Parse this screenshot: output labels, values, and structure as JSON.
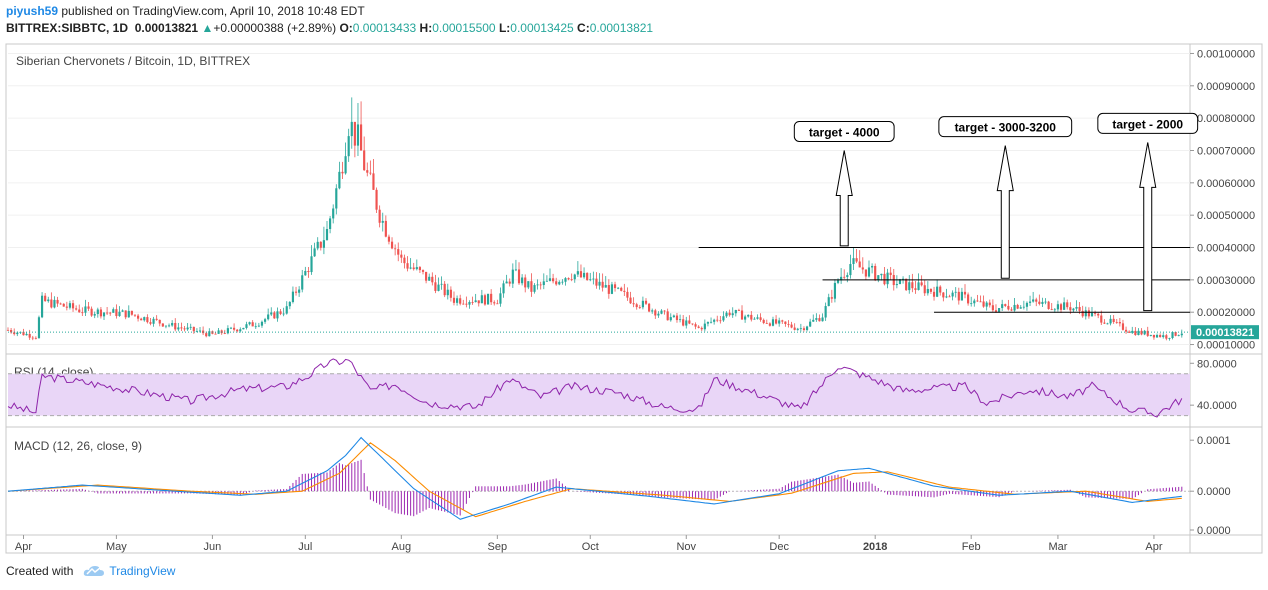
{
  "header": {
    "user": "piyush59",
    "published": "published on TradingView.com, April 10, 2018 10:48 EDT",
    "symbol": "BITTREX:SIBBTC, 1D",
    "last": "0.00013821",
    "change_arrow": "▲",
    "change": "+0.00000388 (+2.89%)",
    "o_label": "O:",
    "o": "0.00013433",
    "h_label": "H:",
    "h": "0.00015500",
    "l_label": "L:",
    "l": "0.00013425",
    "c_label": "C:",
    "c": "0.00013821"
  },
  "footer": {
    "created_with": "Created with",
    "brand": "TradingView"
  },
  "colors": {
    "up": "#26a69a",
    "down": "#ef5350",
    "accent": "#1e88e5",
    "rsi": "#8e24aa",
    "macd": "#1e88e5",
    "signal": "#fb8c00",
    "hist": "#9c27b0"
  },
  "chart_data": [
    {
      "type": "candlestick",
      "title": "Siberian Chervonets / Bitcoin, 1D, BITTREX",
      "ylim": [
        8e-05,
        0.00102
      ],
      "yticks": [
        "0.00010000",
        "0.00020000",
        "0.00030000",
        "0.00040000",
        "0.00050000",
        "0.00060000",
        "0.00070000",
        "0.00080000",
        "0.00090000",
        "0.00100000"
      ],
      "last_price_label": "0.00013821",
      "last_price": 0.00013821,
      "xticks": [
        "Apr",
        "May",
        "Jun",
        "Jul",
        "Aug",
        "Sep",
        "Oct",
        "Nov",
        "Dec",
        "2018",
        "Feb",
        "Mar",
        "Apr"
      ],
      "close_path": [
        [
          "2017-03-27",
          0.000145
        ],
        [
          "2017-04-05",
          0.000125
        ],
        [
          "2017-04-07",
          0.000235
        ],
        [
          "2017-04-20",
          0.000205
        ],
        [
          "2017-05-05",
          0.000195
        ],
        [
          "2017-05-20",
          0.000155
        ],
        [
          "2017-06-01",
          0.00013
        ],
        [
          "2017-06-15",
          0.000165
        ],
        [
          "2017-06-25",
          0.00021
        ],
        [
          "2017-07-03",
          0.00036
        ],
        [
          "2017-07-08",
          0.00045
        ],
        [
          "2017-07-12",
          0.00062
        ],
        [
          "2017-07-15",
          0.00079
        ],
        [
          "2017-07-18",
          0.00073
        ],
        [
          "2017-07-21",
          0.00062
        ],
        [
          "2017-07-26",
          0.00048
        ],
        [
          "2017-08-01",
          0.00036
        ],
        [
          "2017-08-10",
          0.0003
        ],
        [
          "2017-08-18",
          0.00024
        ],
        [
          "2017-09-01",
          0.00024
        ],
        [
          "2017-09-06",
          0.00032
        ],
        [
          "2017-09-12",
          0.00027
        ],
        [
          "2017-09-25",
          0.00032
        ],
        [
          "2017-10-10",
          0.00026
        ],
        [
          "2017-10-25",
          0.00019
        ],
        [
          "2017-11-05",
          0.00015
        ],
        [
          "2017-11-15",
          0.0002
        ],
        [
          "2017-11-25",
          0.000175
        ],
        [
          "2017-12-08",
          0.00015
        ],
        [
          "2017-12-15",
          0.00019
        ],
        [
          "2017-12-20",
          0.0003
        ],
        [
          "2017-12-24",
          0.00035
        ],
        [
          "2018-01-08",
          0.00029
        ],
        [
          "2018-01-28",
          0.00025
        ],
        [
          "2018-02-08",
          0.00021
        ],
        [
          "2018-02-20",
          0.00023
        ],
        [
          "2018-03-05",
          0.000215
        ],
        [
          "2018-03-15",
          0.00018
        ],
        [
          "2018-03-25",
          0.00014
        ],
        [
          "2018-04-05",
          0.000125
        ],
        [
          "2018-04-10",
          0.000138
        ]
      ],
      "horizontal_lines": [
        {
          "y": 0.0004,
          "from": "2017-11-05"
        },
        {
          "y": 0.0003,
          "from": "2017-12-15"
        },
        {
          "y": 0.0002,
          "from": "2018-01-20"
        }
      ],
      "annotations": [
        {
          "text": "target - 4000",
          "x": "2017-12-22",
          "arrow_bottom": 0.000405,
          "arrow_top": 0.0007
        },
        {
          "text": "target - 3000-3200",
          "x": "2018-02-12",
          "arrow_bottom": 0.000305,
          "arrow_top": 0.000715
        },
        {
          "text": "target - 2000",
          "x": "2018-03-30",
          "arrow_bottom": 0.000205,
          "arrow_top": 0.000725
        }
      ]
    },
    {
      "type": "line",
      "title": "RSI (14, close)",
      "ylim": [
        22,
        86
      ],
      "yticks": [
        "80.0000",
        "40.0000"
      ],
      "band": [
        30,
        70
      ],
      "series": [
        {
          "values": [
            [
              "2017-03-27",
              40
            ],
            [
              "2017-04-05",
              33
            ],
            [
              "2017-04-07",
              68
            ],
            [
              "2017-05-01",
              57
            ],
            [
              "2017-05-25",
              44
            ],
            [
              "2017-06-10",
              55
            ],
            [
              "2017-06-25",
              58
            ],
            [
              "2017-07-02",
              68
            ],
            [
              "2017-07-08",
              80
            ],
            [
              "2017-07-15",
              83
            ],
            [
              "2017-07-22",
              54
            ],
            [
              "2017-07-30",
              60
            ],
            [
              "2017-08-10",
              42
            ],
            [
              "2017-08-25",
              38
            ],
            [
              "2017-09-05",
              65
            ],
            [
              "2017-09-15",
              48
            ],
            [
              "2017-09-25",
              58
            ],
            [
              "2017-10-10",
              52
            ],
            [
              "2017-10-25",
              38
            ],
            [
              "2017-11-05",
              36
            ],
            [
              "2017-11-10",
              65
            ],
            [
              "2017-11-25",
              50
            ],
            [
              "2017-12-08",
              36
            ],
            [
              "2017-12-20",
              78
            ],
            [
              "2017-12-25",
              72
            ],
            [
              "2018-01-10",
              54
            ],
            [
              "2018-01-30",
              58
            ],
            [
              "2018-02-06",
              42
            ],
            [
              "2018-02-20",
              55
            ],
            [
              "2018-03-05",
              48
            ],
            [
              "2018-03-12",
              58
            ],
            [
              "2018-03-25",
              35
            ],
            [
              "2018-04-02",
              32
            ],
            [
              "2018-04-10",
              46
            ]
          ]
        }
      ]
    },
    {
      "type": "line",
      "title": "MACD (12, 26, close, 9)",
      "ylim": [
        -8e-05,
        0.00012
      ],
      "yticks": [
        "0.0001",
        "0.0000",
        "0.0000"
      ],
      "series": [
        {
          "name": "MACD",
          "values": [
            [
              "2017-03-27",
              0.0
            ],
            [
              "2017-04-20",
              1.2e-05
            ],
            [
              "2017-05-20",
              0.0
            ],
            [
              "2017-06-10",
              -8e-06
            ],
            [
              "2017-06-25",
              0.0
            ],
            [
              "2017-07-08",
              4e-05
            ],
            [
              "2017-07-14",
              7e-05
            ],
            [
              "2017-07-19",
              0.000105
            ],
            [
              "2017-07-25",
              7e-05
            ],
            [
              "2017-08-05",
              5e-06
            ],
            [
              "2017-08-20",
              -5.5e-05
            ],
            [
              "2017-09-05",
              -2.5e-05
            ],
            [
              "2017-09-20",
              8e-06
            ],
            [
              "2017-10-20",
              -1e-05
            ],
            [
              "2017-11-10",
              -2.5e-05
            ],
            [
              "2017-12-01",
              -5e-06
            ],
            [
              "2017-12-20",
              4e-05
            ],
            [
              "2017-12-30",
              4.5e-05
            ],
            [
              "2018-01-20",
              1e-05
            ],
            [
              "2018-02-10",
              -8e-06
            ],
            [
              "2018-03-05",
              0.0
            ],
            [
              "2018-03-25",
              -2.2e-05
            ],
            [
              "2018-04-10",
              -1e-05
            ]
          ]
        },
        {
          "name": "Signal",
          "values": [
            [
              "2017-03-27",
              0.0
            ],
            [
              "2017-04-25",
              1.2e-05
            ],
            [
              "2017-05-25",
              0.0
            ],
            [
              "2017-06-15",
              -6e-06
            ],
            [
              "2017-06-30",
              0.0
            ],
            [
              "2017-07-12",
              3.5e-05
            ],
            [
              "2017-07-22",
              9.5e-05
            ],
            [
              "2017-07-30",
              6e-05
            ],
            [
              "2017-08-10",
              0.0
            ],
            [
              "2017-08-25",
              -5e-05
            ],
            [
              "2017-09-10",
              -2e-05
            ],
            [
              "2017-09-25",
              5e-06
            ],
            [
              "2017-10-25",
              -8e-06
            ],
            [
              "2017-11-15",
              -2e-05
            ],
            [
              "2017-12-05",
              -4e-06
            ],
            [
              "2017-12-25",
              3.5e-05
            ],
            [
              "2018-01-05",
              3.8e-05
            ],
            [
              "2018-01-25",
              8e-06
            ],
            [
              "2018-02-15",
              -6e-06
            ],
            [
              "2018-03-10",
              0.0
            ],
            [
              "2018-03-30",
              -2e-05
            ],
            [
              "2018-04-10",
              -1.4e-05
            ]
          ]
        }
      ]
    }
  ]
}
